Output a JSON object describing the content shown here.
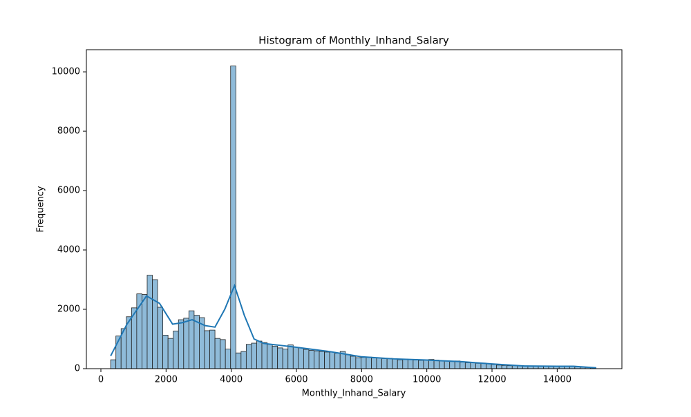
{
  "chart_data": {
    "type": "histogram",
    "title": "Histogram of Monthly_Inhand_Salary",
    "x_label": "Monthly_Inhand_Salary",
    "y_label": "Frequency",
    "bins": [
      300,
      460,
      620,
      780,
      940,
      1100,
      1260,
      1420,
      1580,
      1740,
      1900,
      2060,
      2220,
      2380,
      2540,
      2700,
      2860,
      3020,
      3180,
      3340,
      3500,
      3660,
      3820,
      3980,
      4140,
      4300,
      4460,
      4620,
      4780,
      4940,
      5100,
      5260,
      5420,
      5580,
      5740,
      5900,
      6060,
      6220,
      6380,
      6540,
      6700,
      6860,
      7020,
      7180,
      7340,
      7500,
      7660,
      7820,
      7980,
      8140,
      8300,
      8460,
      8620,
      8780,
      8940,
      9100,
      9260,
      9420,
      9580,
      9740,
      9900,
      10060,
      10220,
      10380,
      10540,
      10700,
      10860,
      11020,
      11180,
      11340,
      11500,
      11660,
      11820,
      11980,
      12140,
      12300,
      12460,
      12620,
      12780,
      12940,
      13100,
      13260,
      13420,
      13580,
      13740,
      13900,
      14060,
      14220,
      14380,
      14540,
      14700,
      14860,
      15020,
      15180
    ],
    "values": [
      300,
      1100,
      1350,
      1750,
      2050,
      2520,
      2500,
      3150,
      3000,
      2070,
      1130,
      1020,
      1270,
      1650,
      1700,
      1950,
      1800,
      1720,
      1280,
      1300,
      1020,
      980,
      660,
      10200,
      530,
      580,
      820,
      860,
      930,
      880,
      820,
      760,
      700,
      660,
      800,
      720,
      700,
      650,
      620,
      600,
      580,
      560,
      560,
      520,
      580,
      470,
      420,
      370,
      380,
      390,
      360,
      360,
      340,
      350,
      330,
      300,
      320,
      300,
      290,
      280,
      300,
      310,
      290,
      270,
      260,
      240,
      260,
      220,
      200,
      210,
      180,
      190,
      160,
      140,
      120,
      110,
      100,
      100,
      90,
      90,
      90,
      80,
      80,
      90,
      90,
      80,
      90,
      70,
      70,
      60,
      50,
      40,
      30
    ],
    "color": "#8fbbd9",
    "kde": {
      "color": "#1f77b4",
      "x": [
        300,
        800,
        1400,
        1800,
        2200,
        2500,
        2800,
        3200,
        3500,
        3800,
        4100,
        4400,
        4700,
        5000,
        6000,
        7000,
        8000,
        9000,
        10000,
        11000,
        12000,
        13000,
        14000,
        14500,
        15200
      ],
      "values": [
        430,
        1500,
        2450,
        2200,
        1500,
        1550,
        1650,
        1450,
        1400,
        2000,
        2800,
        1800,
        1000,
        850,
        720,
        580,
        400,
        330,
        290,
        240,
        160,
        90,
        80,
        80,
        30
      ]
    },
    "xlim": [
      -445,
      15985
    ],
    "ylim": [
      0,
      10746
    ],
    "xticks": [
      0,
      2000,
      4000,
      6000,
      8000,
      10000,
      12000,
      14000
    ],
    "yticks": [
      0,
      2000,
      4000,
      6000,
      8000,
      10000
    ]
  }
}
